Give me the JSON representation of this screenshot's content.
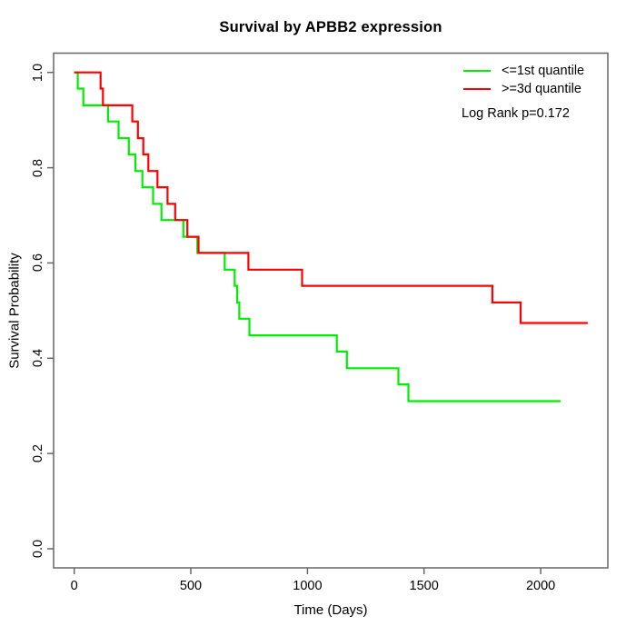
{
  "figure": {
    "background": "#ffffff",
    "border_color": "#666666",
    "text_color": "#000000"
  },
  "chart_data": {
    "type": "line",
    "subtype": "kaplan-meier-step",
    "title": "Survival by APBB2 expression",
    "xlabel": "Time (Days)",
    "ylabel": "Survival Probability",
    "xlim": [
      0,
      2200
    ],
    "ylim": [
      0.0,
      1.0
    ],
    "x_ticks": [
      0,
      500,
      1000,
      1500,
      2000
    ],
    "y_ticks": [
      "0.0",
      "0.2",
      "0.4",
      "0.6",
      "0.8",
      "1.0"
    ],
    "grid": false,
    "legend_position": "top-right",
    "annotation": "Log Rank p=0.172",
    "series": [
      {
        "name": "<=1st quantile",
        "color": "#00ee00",
        "end_time": 2085,
        "points": [
          [
            0,
            1.0
          ],
          [
            15,
            0.966
          ],
          [
            39,
            0.931
          ],
          [
            145,
            0.897
          ],
          [
            190,
            0.862
          ],
          [
            234,
            0.828
          ],
          [
            262,
            0.793
          ],
          [
            292,
            0.759
          ],
          [
            338,
            0.724
          ],
          [
            374,
            0.69
          ],
          [
            468,
            0.655
          ],
          [
            528,
            0.621
          ],
          [
            645,
            0.586
          ],
          [
            688,
            0.552
          ],
          [
            699,
            0.517
          ],
          [
            708,
            0.483
          ],
          [
            751,
            0.448
          ],
          [
            1126,
            0.414
          ],
          [
            1169,
            0.379
          ],
          [
            1390,
            0.345
          ],
          [
            1433,
            0.31
          ]
        ]
      },
      {
        "name": ">=3d quantile",
        "color": "#ff0000",
        "end_time": 2202,
        "points": [
          [
            0,
            1.0
          ],
          [
            113,
            0.966
          ],
          [
            123,
            0.931
          ],
          [
            249,
            0.897
          ],
          [
            273,
            0.862
          ],
          [
            296,
            0.828
          ],
          [
            318,
            0.793
          ],
          [
            357,
            0.759
          ],
          [
            400,
            0.724
          ],
          [
            433,
            0.69
          ],
          [
            485,
            0.655
          ],
          [
            533,
            0.621
          ],
          [
            747,
            0.586
          ],
          [
            977,
            0.552
          ],
          [
            1793,
            0.517
          ],
          [
            1914,
            0.474
          ]
        ]
      }
    ]
  }
}
